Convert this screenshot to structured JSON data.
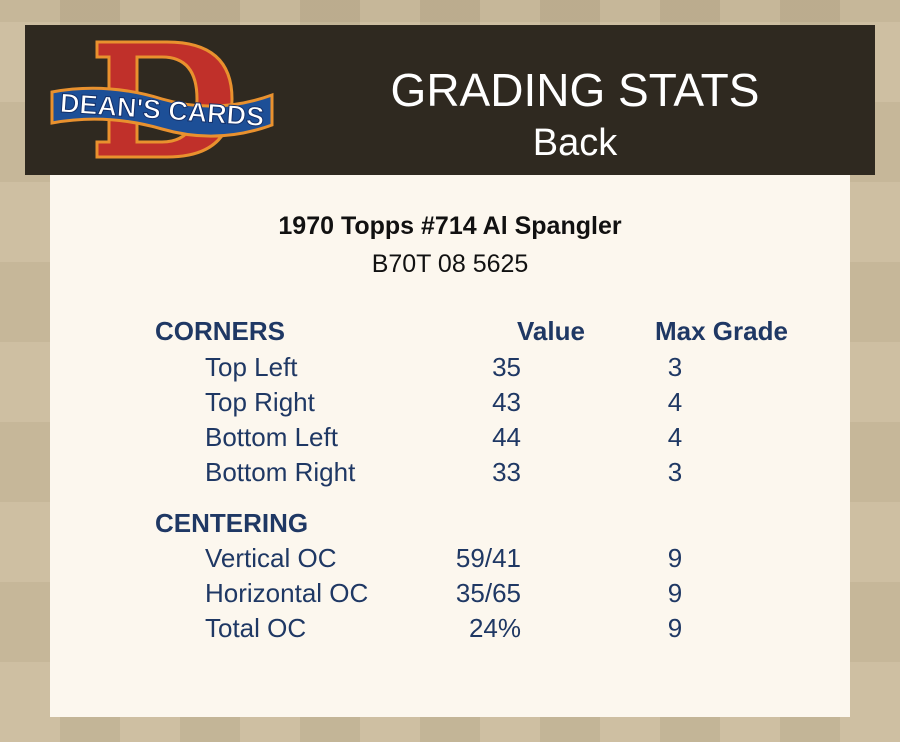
{
  "logo_text": "DEAN'S CARDS",
  "header": {
    "title": "GRADING STATS",
    "subtitle": "Back"
  },
  "card": {
    "title": "1970 Topps #714 Al Spangler",
    "code": "B70T 08 5625"
  },
  "columns": {
    "value": "Value",
    "max_grade": "Max Grade"
  },
  "corners": {
    "heading": "CORNERS",
    "rows": [
      {
        "label": "Top Left",
        "value": "35",
        "max": "3"
      },
      {
        "label": "Top Right",
        "value": "43",
        "max": "4"
      },
      {
        "label": "Bottom Left",
        "value": "44",
        "max": "4"
      },
      {
        "label": "Bottom Right",
        "value": "33",
        "max": "3"
      }
    ]
  },
  "centering": {
    "heading": "CENTERING",
    "rows": [
      {
        "label": "Vertical OC",
        "value": "59/41",
        "max": "9"
      },
      {
        "label": "Horizontal OC",
        "value": "35/65",
        "max": "9"
      },
      {
        "label": "Total OC",
        "value": "24%",
        "max": "9"
      }
    ]
  },
  "colors": {
    "text": "#1f3864",
    "header_bg": "#2f2920",
    "panel": "#fcf7ee",
    "background": "#c9b999"
  }
}
